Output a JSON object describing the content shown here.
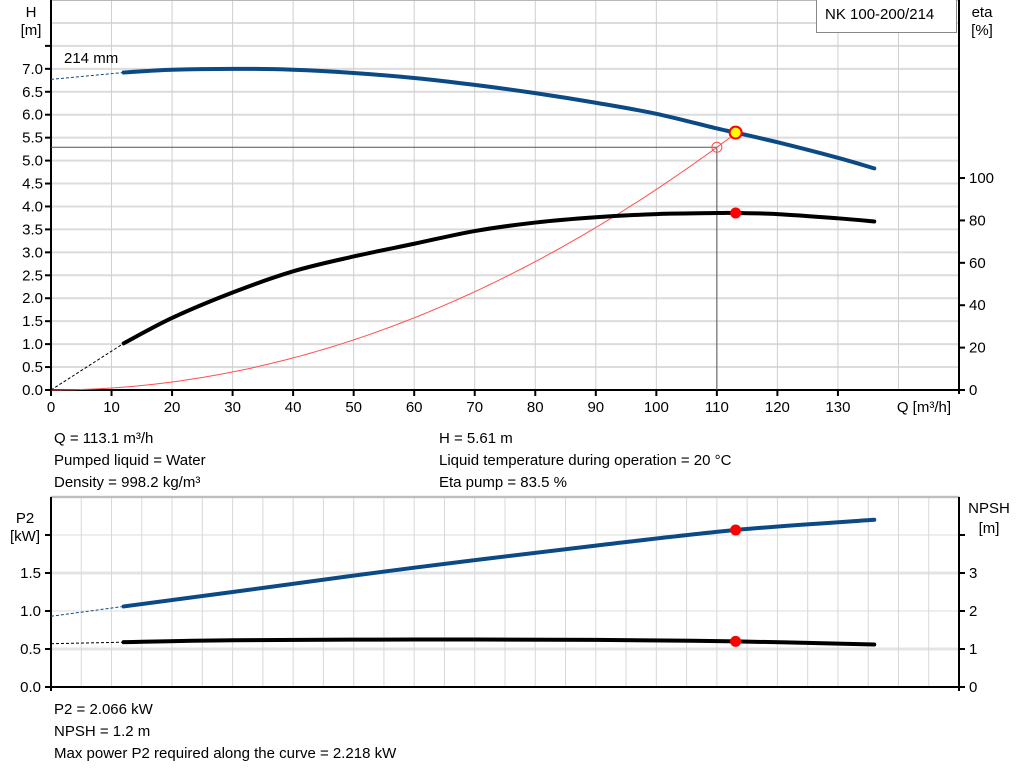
{
  "chart_data": [
    {
      "type": "line",
      "title": "NK 100-200/214",
      "xlabel": "Q [m³/h]",
      "ylabel": "H [m]",
      "ylabel_lines": [
        "H",
        "[m]"
      ],
      "y2label_lines": [
        "eta",
        "[%]"
      ],
      "xlim": [
        0,
        150
      ],
      "ylim": [
        0,
        8.5
      ],
      "y2lim": [
        0,
        184
      ],
      "xticks": [
        0,
        10,
        20,
        30,
        40,
        50,
        60,
        70,
        80,
        90,
        100,
        110,
        120,
        130
      ],
      "yticks": [
        "0.0",
        "0.5",
        "1.0",
        "1.5",
        "2.0",
        "2.5",
        "3.0",
        "3.5",
        "4.0",
        "4.5",
        "5.0",
        "5.5",
        "6.0",
        "6.5",
        "7.0"
      ],
      "y2ticks": [
        0,
        20,
        40,
        60,
        80,
        100
      ],
      "grid": true,
      "curve_label": "214 mm",
      "series": [
        {
          "key": "H",
          "color": "#0b4a85",
          "axis": "left",
          "x": [
            12,
            20,
            30,
            40,
            50,
            60,
            70,
            80,
            90,
            100,
            110,
            113.1,
            120,
            130,
            136
          ],
          "y": [
            6.92,
            6.98,
            7.0,
            6.98,
            6.91,
            6.8,
            6.65,
            6.47,
            6.26,
            6.02,
            5.7,
            5.61,
            5.4,
            5.06,
            4.83
          ],
          "extrapolated": {
            "x": [
              0,
              12
            ],
            "y": [
              6.77,
              6.92
            ]
          }
        },
        {
          "key": "eta",
          "color": "#000000",
          "axis": "right",
          "x": [
            12,
            20,
            30,
            40,
            50,
            60,
            70,
            80,
            90,
            100,
            110,
            113.1,
            120,
            130,
            136
          ],
          "y": [
            22,
            34,
            46,
            56,
            63,
            69,
            75,
            79,
            81.5,
            83,
            83.5,
            83.5,
            83,
            81,
            79.5
          ],
          "extrapolated": {
            "x": [
              0,
              12
            ],
            "y": [
              0,
              22
            ]
          }
        },
        {
          "key": "system",
          "color": "#ff5050",
          "axis": "left",
          "formula": "H = 5.29*(Q/110)^2",
          "x_end": 113.1,
          "y_end": 5.61
        }
      ],
      "operating_point": {
        "Q": 113.1,
        "H": 5.61,
        "eta": 83.5
      },
      "duty_point": {
        "Q": 110,
        "H": 5.29
      }
    },
    {
      "type": "line",
      "ylabel_lines": [
        "P2",
        "[kW]"
      ],
      "y2label_lines": [
        "NPSH",
        "[m]"
      ],
      "xlim": [
        0,
        150
      ],
      "ylim": [
        0,
        2.5
      ],
      "y2lim": [
        0,
        5
      ],
      "yticks": [
        "0.0",
        "0.5",
        "1.0",
        "1.5",
        ""
      ],
      "y2ticks": [
        "0",
        "1",
        "2",
        "3",
        ""
      ],
      "grid": true,
      "series": [
        {
          "key": "P2",
          "color": "#0b4a85",
          "axis": "left",
          "x": [
            12,
            30,
            60,
            90,
            113.1,
            136
          ],
          "y": [
            1.06,
            1.25,
            1.57,
            1.86,
            2.066,
            2.2
          ],
          "extrapolated": {
            "x": [
              0,
              12
            ],
            "y": [
              0.93,
              1.06
            ]
          }
        },
        {
          "key": "NPSH",
          "color": "#000000",
          "axis": "right",
          "x": [
            12,
            30,
            60,
            90,
            113.1,
            136
          ],
          "y": [
            1.18,
            1.23,
            1.25,
            1.24,
            1.2,
            1.12
          ],
          "extrapolated": {
            "x": [
              0,
              12
            ],
            "y": [
              1.14,
              1.18
            ]
          }
        }
      ],
      "operating_point": {
        "Q": 113.1,
        "P2": 2.066,
        "NPSH": 1.2
      }
    }
  ],
  "info_top_left": [
    "Q = 113.1 m³/h",
    "Pumped liquid = Water",
    "Density = 998.2 kg/m³"
  ],
  "info_top_right": [
    "H = 5.61 m",
    "Liquid temperature during operation = 20 °C",
    "Eta pump = 83.5 %"
  ],
  "info_bottom": [
    "P2 = 2.066 kW",
    "NPSH = 1.2 m",
    "Max power P2 required along the curve = 2.218 kW"
  ],
  "colors": {
    "curve_blue": "#0b4a85",
    "marker_red": "#ff0000",
    "marker_yellow": "#ffff00",
    "system_red": "#ff5050",
    "grid": "#d8d8d8"
  }
}
